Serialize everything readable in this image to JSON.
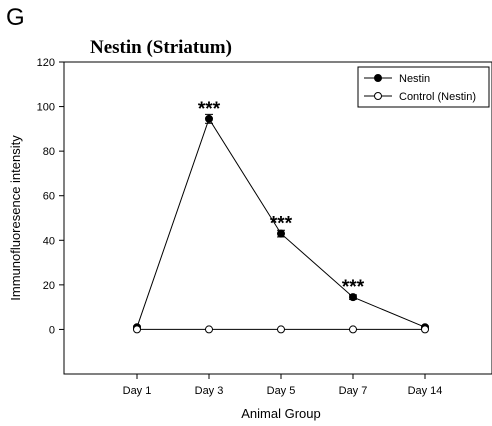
{
  "panel_label": "G",
  "chart_data": {
    "type": "line",
    "title": "Nestin (Striatum)",
    "xlabel": "Animal Group",
    "ylabel": "Immunofluoresence intensity",
    "categories": [
      "Day 1",
      "Day 3",
      "Day 5",
      "Day 7",
      "Day 14"
    ],
    "ylim": [
      -20,
      120
    ],
    "yticks": [
      0,
      20,
      40,
      60,
      80,
      100,
      120
    ],
    "grid": false,
    "legend_position": "top-right",
    "series": [
      {
        "name": "Nestin",
        "values": [
          1,
          94.5,
          43,
          14.5,
          1
        ],
        "errors": [
          0.5,
          2,
          1.5,
          1,
          0.5
        ],
        "marker": "filled-circle",
        "annotations": [
          "",
          "***",
          "***",
          "***",
          ""
        ]
      },
      {
        "name": "Control (Nestin)",
        "values": [
          0,
          0,
          0,
          0,
          0
        ],
        "marker": "open-circle"
      }
    ]
  }
}
